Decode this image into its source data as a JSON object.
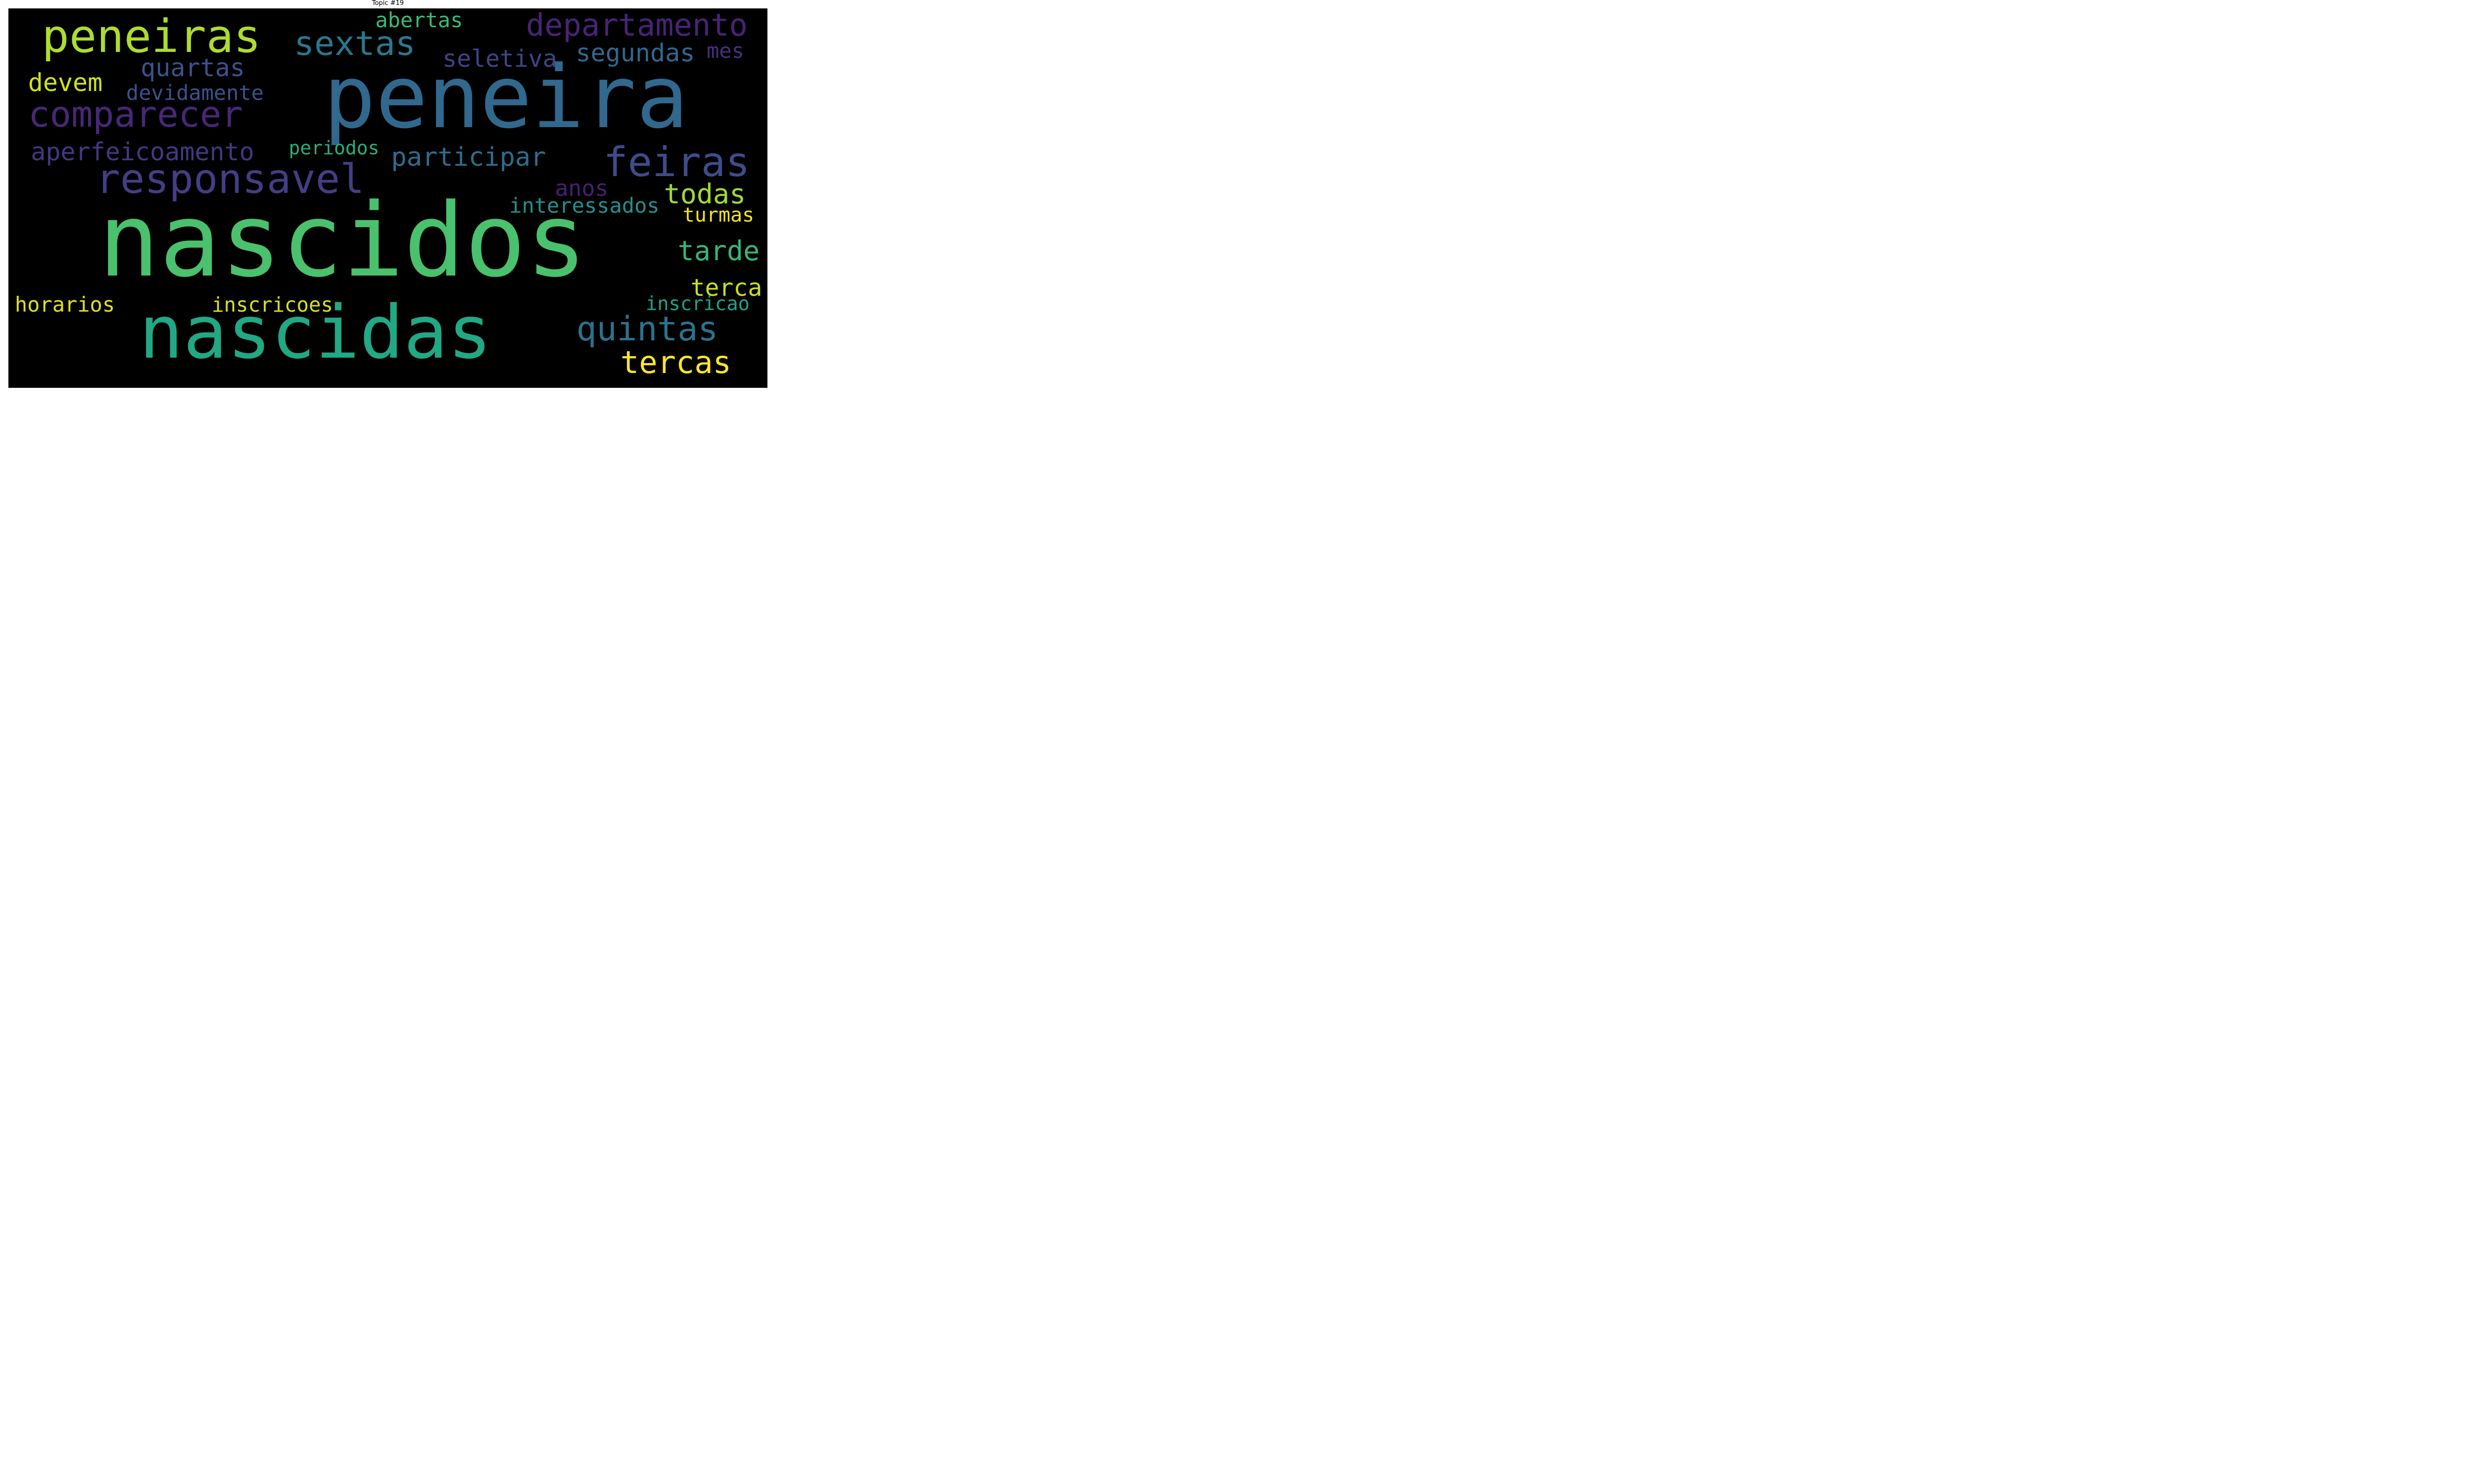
{
  "title": "Topic #19",
  "words": [
    {
      "text": "nascidos",
      "color": "#4ac16d"
    },
    {
      "text": "peneira",
      "color": "#31688e"
    },
    {
      "text": "nascidas",
      "color": "#22a884"
    },
    {
      "text": "peneiras",
      "color": "#addc30"
    },
    {
      "text": "responsavel",
      "color": "#433e85"
    },
    {
      "text": "comparecer",
      "color": "#482878"
    },
    {
      "text": "feiras",
      "color": "#3e4c8a"
    },
    {
      "text": "departamento",
      "color": "#482475"
    },
    {
      "text": "sextas",
      "color": "#2a788e"
    },
    {
      "text": "quintas",
      "color": "#2c728e"
    },
    {
      "text": "tercas",
      "color": "#fde725"
    },
    {
      "text": "aperfeicoamento",
      "color": "#453781"
    },
    {
      "text": "quartas",
      "color": "#3b528b"
    },
    {
      "text": "devem",
      "color": "#d2e21b"
    },
    {
      "text": "participar",
      "color": "#2f6c8e"
    },
    {
      "text": "todas",
      "color": "#a0da39"
    },
    {
      "text": "tarde",
      "color": "#35b779"
    },
    {
      "text": "terca",
      "color": "#c8e020"
    },
    {
      "text": "segundas",
      "color": "#31688e"
    },
    {
      "text": "seletiva",
      "color": "#414487"
    },
    {
      "text": "devidamente",
      "color": "#3b528b"
    },
    {
      "text": "abertas",
      "color": "#3aba76"
    },
    {
      "text": "anos",
      "color": "#481f70"
    },
    {
      "text": "mes",
      "color": "#46317e"
    },
    {
      "text": "interessados",
      "color": "#21918c"
    },
    {
      "text": "turmas",
      "color": "#f1e51d"
    },
    {
      "text": "periodos",
      "color": "#28ae80"
    },
    {
      "text": "horarios",
      "color": "#dfe318"
    },
    {
      "text": "inscricoes",
      "color": "#d8e219"
    },
    {
      "text": "inscricao",
      "color": "#1fa187"
    }
  ]
}
